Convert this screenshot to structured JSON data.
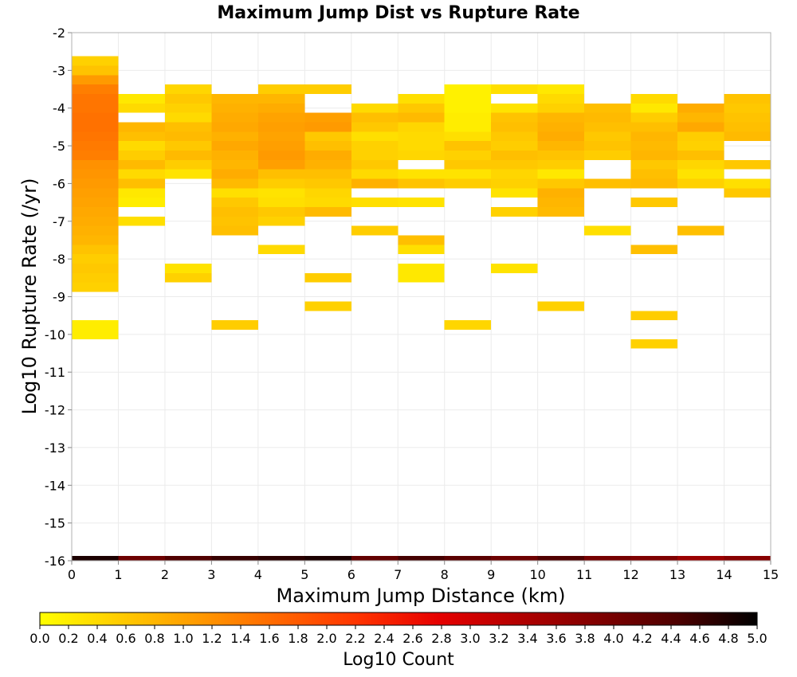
{
  "chart_data": {
    "type": "heatmap",
    "title": "Maximum Jump Dist vs Rupture Rate",
    "xlabel": "Maximum Jump Distance (km)",
    "ylabel": "Log10 Rupture Rate (/yr)",
    "xlim": [
      0,
      15
    ],
    "ylim": [
      -16,
      -2
    ],
    "x_ticks": [
      0,
      1,
      2,
      3,
      4,
      5,
      6,
      7,
      8,
      9,
      10,
      11,
      12,
      13,
      14,
      15
    ],
    "y_ticks": [
      -2,
      -3,
      -4,
      -5,
      -6,
      -7,
      -8,
      -9,
      -10,
      -11,
      -12,
      -13,
      -14,
      -15,
      -16
    ],
    "x_bin_width": 1,
    "y_bin_height": 0.25,
    "colorscale": {
      "title": "Log10 Count",
      "min": 0.0,
      "max": 5.0,
      "ticks": [
        "0.0",
        "0.2",
        "0.4",
        "0.6",
        "0.8",
        "1.0",
        "1.2",
        "1.4",
        "1.6",
        "1.8",
        "2.0",
        "2.2",
        "2.4",
        "2.6",
        "2.8",
        "3.0",
        "3.2",
        "3.4",
        "3.6",
        "3.8",
        "4.0",
        "4.2",
        "4.4",
        "4.6",
        "4.8",
        "5.0"
      ],
      "stops": [
        "#ffff00",
        "#ffcc00",
        "#ff9900",
        "#ff6600",
        "#ff3300",
        "#e60000",
        "#b30000",
        "#800000",
        "#4d0000",
        "#000000"
      ]
    },
    "cells": [
      {
        "x": 0,
        "y": -2.75,
        "v": 0.5
      },
      {
        "x": 0,
        "y": -3.0,
        "v": 0.65
      },
      {
        "x": 0,
        "y": -3.25,
        "v": 1.1
      },
      {
        "x": 0,
        "y": -3.5,
        "v": 1.4
      },
      {
        "x": 0,
        "y": -3.75,
        "v": 1.5
      },
      {
        "x": 0,
        "y": -4.0,
        "v": 1.5
      },
      {
        "x": 0,
        "y": -4.25,
        "v": 1.55
      },
      {
        "x": 0,
        "y": -4.5,
        "v": 1.55
      },
      {
        "x": 0,
        "y": -4.75,
        "v": 1.5
      },
      {
        "x": 0,
        "y": -5.0,
        "v": 1.45
      },
      {
        "x": 0,
        "y": -5.25,
        "v": 1.4
      },
      {
        "x": 0,
        "y": -5.5,
        "v": 1.2
      },
      {
        "x": 0,
        "y": -5.75,
        "v": 1.15
      },
      {
        "x": 0,
        "y": -6.0,
        "v": 1.1
      },
      {
        "x": 0,
        "y": -6.25,
        "v": 1.05
      },
      {
        "x": 0,
        "y": -6.5,
        "v": 1.0
      },
      {
        "x": 0,
        "y": -6.75,
        "v": 0.95
      },
      {
        "x": 0,
        "y": -7.0,
        "v": 0.9
      },
      {
        "x": 0,
        "y": -7.25,
        "v": 0.85
      },
      {
        "x": 0,
        "y": -7.5,
        "v": 0.8
      },
      {
        "x": 0,
        "y": -7.75,
        "v": 0.65
      },
      {
        "x": 0,
        "y": -8.0,
        "v": 0.55
      },
      {
        "x": 0,
        "y": -8.25,
        "v": 0.6
      },
      {
        "x": 0,
        "y": -8.5,
        "v": 0.55
      },
      {
        "x": 0,
        "y": -8.75,
        "v": 0.5
      },
      {
        "x": 0,
        "y": -9.75,
        "v": 0.2
      },
      {
        "x": 0,
        "y": -10.0,
        "v": 0.2
      },
      {
        "x": 1,
        "y": -3.75,
        "v": 0.25
      },
      {
        "x": 1,
        "y": -4.0,
        "v": 0.4
      },
      {
        "x": 1,
        "y": -4.5,
        "v": 0.8
      },
      {
        "x": 1,
        "y": -4.75,
        "v": 0.7
      },
      {
        "x": 1,
        "y": -5.0,
        "v": 0.4
      },
      {
        "x": 1,
        "y": -5.25,
        "v": 0.55
      },
      {
        "x": 1,
        "y": -5.5,
        "v": 0.75
      },
      {
        "x": 1,
        "y": -5.75,
        "v": 0.4
      },
      {
        "x": 1,
        "y": -6.0,
        "v": 0.7
      },
      {
        "x": 1,
        "y": -6.25,
        "v": 0.25
      },
      {
        "x": 1,
        "y": -6.5,
        "v": 0.2
      },
      {
        "x": 1,
        "y": -7.0,
        "v": 0.35
      },
      {
        "x": 2,
        "y": -3.5,
        "v": 0.45
      },
      {
        "x": 2,
        "y": -3.75,
        "v": 0.6
      },
      {
        "x": 2,
        "y": -4.0,
        "v": 0.5
      },
      {
        "x": 2,
        "y": -4.25,
        "v": 0.4
      },
      {
        "x": 2,
        "y": -4.5,
        "v": 0.7
      },
      {
        "x": 2,
        "y": -4.75,
        "v": 0.75
      },
      {
        "x": 2,
        "y": -5.0,
        "v": 0.6
      },
      {
        "x": 2,
        "y": -5.25,
        "v": 0.75
      },
      {
        "x": 2,
        "y": -5.5,
        "v": 0.55
      },
      {
        "x": 2,
        "y": -5.75,
        "v": 0.3
      },
      {
        "x": 2,
        "y": -8.25,
        "v": 0.3
      },
      {
        "x": 2,
        "y": -8.5,
        "v": 0.5
      },
      {
        "x": 3,
        "y": -3.75,
        "v": 0.8
      },
      {
        "x": 3,
        "y": -4.0,
        "v": 0.85
      },
      {
        "x": 3,
        "y": -4.25,
        "v": 0.9
      },
      {
        "x": 3,
        "y": -4.5,
        "v": 0.95
      },
      {
        "x": 3,
        "y": -4.75,
        "v": 0.85
      },
      {
        "x": 3,
        "y": -5.0,
        "v": 0.95
      },
      {
        "x": 3,
        "y": -5.25,
        "v": 0.85
      },
      {
        "x": 3,
        "y": -5.5,
        "v": 0.8
      },
      {
        "x": 3,
        "y": -5.75,
        "v": 0.9
      },
      {
        "x": 3,
        "y": -6.0,
        "v": 0.75
      },
      {
        "x": 3,
        "y": -6.25,
        "v": 0.35
      },
      {
        "x": 3,
        "y": -6.5,
        "v": 0.6
      },
      {
        "x": 3,
        "y": -6.75,
        "v": 0.7
      },
      {
        "x": 3,
        "y": -7.0,
        "v": 0.65
      },
      {
        "x": 3,
        "y": -7.25,
        "v": 0.7
      },
      {
        "x": 3,
        "y": -9.75,
        "v": 0.55
      },
      {
        "x": 4,
        "y": -3.5,
        "v": 0.55
      },
      {
        "x": 4,
        "y": -3.75,
        "v": 0.8
      },
      {
        "x": 4,
        "y": -4.0,
        "v": 0.9
      },
      {
        "x": 4,
        "y": -4.25,
        "v": 1.0
      },
      {
        "x": 4,
        "y": -4.5,
        "v": 1.05
      },
      {
        "x": 4,
        "y": -4.75,
        "v": 1.0
      },
      {
        "x": 4,
        "y": -5.0,
        "v": 1.05
      },
      {
        "x": 4,
        "y": -5.25,
        "v": 1.1
      },
      {
        "x": 4,
        "y": -5.5,
        "v": 1.05
      },
      {
        "x": 4,
        "y": -5.75,
        "v": 0.7
      },
      {
        "x": 4,
        "y": -6.0,
        "v": 0.55
      },
      {
        "x": 4,
        "y": -6.25,
        "v": 0.3
      },
      {
        "x": 4,
        "y": -6.5,
        "v": 0.35
      },
      {
        "x": 4,
        "y": -6.75,
        "v": 0.6
      },
      {
        "x": 4,
        "y": -7.0,
        "v": 0.5
      },
      {
        "x": 4,
        "y": -7.75,
        "v": 0.4
      },
      {
        "x": 5,
        "y": -3.5,
        "v": 0.55
      },
      {
        "x": 5,
        "y": -4.25,
        "v": 1.05
      },
      {
        "x": 5,
        "y": -4.5,
        "v": 1.1
      },
      {
        "x": 5,
        "y": -4.75,
        "v": 0.6
      },
      {
        "x": 5,
        "y": -5.0,
        "v": 0.7
      },
      {
        "x": 5,
        "y": -5.25,
        "v": 0.9
      },
      {
        "x": 5,
        "y": -5.5,
        "v": 0.85
      },
      {
        "x": 5,
        "y": -5.75,
        "v": 0.7
      },
      {
        "x": 5,
        "y": -6.0,
        "v": 0.6
      },
      {
        "x": 5,
        "y": -6.25,
        "v": 0.45
      },
      {
        "x": 5,
        "y": -6.5,
        "v": 0.4
      },
      {
        "x": 5,
        "y": -6.75,
        "v": 0.75
      },
      {
        "x": 5,
        "y": -8.5,
        "v": 0.55
      },
      {
        "x": 5,
        "y": -9.25,
        "v": 0.5
      },
      {
        "x": 6,
        "y": -4.0,
        "v": 0.4
      },
      {
        "x": 6,
        "y": -4.25,
        "v": 0.7
      },
      {
        "x": 6,
        "y": -4.5,
        "v": 0.6
      },
      {
        "x": 6,
        "y": -4.75,
        "v": 0.35
      },
      {
        "x": 6,
        "y": -5.0,
        "v": 0.5
      },
      {
        "x": 6,
        "y": -5.25,
        "v": 0.5
      },
      {
        "x": 6,
        "y": -5.5,
        "v": 0.6
      },
      {
        "x": 6,
        "y": -5.75,
        "v": 0.4
      },
      {
        "x": 6,
        "y": -6.0,
        "v": 0.85
      },
      {
        "x": 6,
        "y": -6.5,
        "v": 0.35
      },
      {
        "x": 6,
        "y": -7.25,
        "v": 0.55
      },
      {
        "x": 7,
        "y": -3.75,
        "v": 0.35
      },
      {
        "x": 7,
        "y": -4.0,
        "v": 0.6
      },
      {
        "x": 7,
        "y": -4.25,
        "v": 0.75
      },
      {
        "x": 7,
        "y": -4.5,
        "v": 0.45
      },
      {
        "x": 7,
        "y": -4.75,
        "v": 0.4
      },
      {
        "x": 7,
        "y": -5.0,
        "v": 0.4
      },
      {
        "x": 7,
        "y": -5.25,
        "v": 0.45
      },
      {
        "x": 7,
        "y": -5.75,
        "v": 0.3
      },
      {
        "x": 7,
        "y": -6.0,
        "v": 0.65
      },
      {
        "x": 7,
        "y": -6.5,
        "v": 0.3
      },
      {
        "x": 7,
        "y": -7.5,
        "v": 0.7
      },
      {
        "x": 7,
        "y": -7.75,
        "v": 0.35
      },
      {
        "x": 7,
        "y": -8.25,
        "v": 0.25
      },
      {
        "x": 7,
        "y": -8.5,
        "v": 0.25
      },
      {
        "x": 8,
        "y": -3.5,
        "v": 0.15
      },
      {
        "x": 8,
        "y": -3.75,
        "v": 0.15
      },
      {
        "x": 8,
        "y": -4.0,
        "v": 0.15
      },
      {
        "x": 8,
        "y": -4.25,
        "v": 0.2
      },
      {
        "x": 8,
        "y": -4.5,
        "v": 0.2
      },
      {
        "x": 8,
        "y": -4.75,
        "v": 0.35
      },
      {
        "x": 8,
        "y": -5.0,
        "v": 0.65
      },
      {
        "x": 8,
        "y": -5.25,
        "v": 0.5
      },
      {
        "x": 8,
        "y": -5.5,
        "v": 0.6
      },
      {
        "x": 8,
        "y": -5.75,
        "v": 0.3
      },
      {
        "x": 8,
        "y": -6.0,
        "v": 0.55
      },
      {
        "x": 8,
        "y": -9.75,
        "v": 0.45
      },
      {
        "x": 9,
        "y": -3.5,
        "v": 0.35
      },
      {
        "x": 9,
        "y": -4.0,
        "v": 0.3
      },
      {
        "x": 9,
        "y": -4.25,
        "v": 0.65
      },
      {
        "x": 9,
        "y": -4.5,
        "v": 0.7
      },
      {
        "x": 9,
        "y": -4.75,
        "v": 0.6
      },
      {
        "x": 9,
        "y": -5.0,
        "v": 0.55
      },
      {
        "x": 9,
        "y": -5.25,
        "v": 0.7
      },
      {
        "x": 9,
        "y": -5.5,
        "v": 0.6
      },
      {
        "x": 9,
        "y": -5.75,
        "v": 0.45
      },
      {
        "x": 9,
        "y": -6.0,
        "v": 0.5
      },
      {
        "x": 9,
        "y": -6.25,
        "v": 0.3
      },
      {
        "x": 9,
        "y": -6.75,
        "v": 0.5
      },
      {
        "x": 9,
        "y": -8.25,
        "v": 0.3
      },
      {
        "x": 10,
        "y": -3.5,
        "v": 0.25
      },
      {
        "x": 10,
        "y": -3.75,
        "v": 0.4
      },
      {
        "x": 10,
        "y": -4.0,
        "v": 0.5
      },
      {
        "x": 10,
        "y": -4.25,
        "v": 0.8
      },
      {
        "x": 10,
        "y": -4.5,
        "v": 0.85
      },
      {
        "x": 10,
        "y": -4.75,
        "v": 0.9
      },
      {
        "x": 10,
        "y": -5.0,
        "v": 0.8
      },
      {
        "x": 10,
        "y": -5.25,
        "v": 0.65
      },
      {
        "x": 10,
        "y": -5.5,
        "v": 0.55
      },
      {
        "x": 10,
        "y": -5.75,
        "v": 0.25
      },
      {
        "x": 10,
        "y": -6.0,
        "v": 0.6
      },
      {
        "x": 10,
        "y": -6.25,
        "v": 0.85
      },
      {
        "x": 10,
        "y": -6.5,
        "v": 0.8
      },
      {
        "x": 10,
        "y": -6.75,
        "v": 0.75
      },
      {
        "x": 10,
        "y": -9.25,
        "v": 0.5
      },
      {
        "x": 11,
        "y": -4.0,
        "v": 0.7
      },
      {
        "x": 11,
        "y": -4.25,
        "v": 0.75
      },
      {
        "x": 11,
        "y": -4.5,
        "v": 0.7
      },
      {
        "x": 11,
        "y": -4.75,
        "v": 0.6
      },
      {
        "x": 11,
        "y": -5.0,
        "v": 0.65
      },
      {
        "x": 11,
        "y": -5.25,
        "v": 0.55
      },
      {
        "x": 11,
        "y": -6.0,
        "v": 0.7
      },
      {
        "x": 11,
        "y": -7.25,
        "v": 0.35
      },
      {
        "x": 12,
        "y": -3.75,
        "v": 0.4
      },
      {
        "x": 12,
        "y": -4.0,
        "v": 0.25
      },
      {
        "x": 12,
        "y": -4.25,
        "v": 0.55
      },
      {
        "x": 12,
        "y": -4.5,
        "v": 0.7
      },
      {
        "x": 12,
        "y": -4.75,
        "v": 0.8
      },
      {
        "x": 12,
        "y": -5.0,
        "v": 0.75
      },
      {
        "x": 12,
        "y": -5.25,
        "v": 0.8
      },
      {
        "x": 12,
        "y": -5.5,
        "v": 0.6
      },
      {
        "x": 12,
        "y": -5.75,
        "v": 0.7
      },
      {
        "x": 12,
        "y": -6.0,
        "v": 0.75
      },
      {
        "x": 12,
        "y": -6.5,
        "v": 0.6
      },
      {
        "x": 12,
        "y": -7.75,
        "v": 0.7
      },
      {
        "x": 12,
        "y": -9.5,
        "v": 0.55
      },
      {
        "x": 12,
        "y": -10.25,
        "v": 0.5
      },
      {
        "x": 13,
        "y": -4.0,
        "v": 0.9
      },
      {
        "x": 13,
        "y": -4.25,
        "v": 0.8
      },
      {
        "x": 13,
        "y": -4.5,
        "v": 0.95
      },
      {
        "x": 13,
        "y": -4.75,
        "v": 0.55
      },
      {
        "x": 13,
        "y": -5.0,
        "v": 0.5
      },
      {
        "x": 13,
        "y": -5.25,
        "v": 0.7
      },
      {
        "x": 13,
        "y": -5.5,
        "v": 0.45
      },
      {
        "x": 13,
        "y": -5.75,
        "v": 0.3
      },
      {
        "x": 13,
        "y": -6.0,
        "v": 0.5
      },
      {
        "x": 13,
        "y": -7.25,
        "v": 0.7
      },
      {
        "x": 14,
        "y": -3.75,
        "v": 0.65
      },
      {
        "x": 14,
        "y": -4.0,
        "v": 0.6
      },
      {
        "x": 14,
        "y": -4.25,
        "v": 0.65
      },
      {
        "x": 14,
        "y": -4.5,
        "v": 0.7
      },
      {
        "x": 14,
        "y": -4.75,
        "v": 0.75
      },
      {
        "x": 14,
        "y": -5.5,
        "v": 0.6
      },
      {
        "x": 14,
        "y": -6.0,
        "v": 0.35
      },
      {
        "x": 14,
        "y": -6.25,
        "v": 0.6
      },
      {
        "x": 0,
        "y": -16.0,
        "v": 4.8
      },
      {
        "x": 1,
        "y": -16.0,
        "v": 4.1
      },
      {
        "x": 2,
        "y": -16.0,
        "v": 4.4
      },
      {
        "x": 3,
        "y": -16.0,
        "v": 4.6
      },
      {
        "x": 4,
        "y": -16.0,
        "v": 4.7
      },
      {
        "x": 5,
        "y": -16.0,
        "v": 4.8
      },
      {
        "x": 6,
        "y": -16.0,
        "v": 4.2
      },
      {
        "x": 7,
        "y": -16.0,
        "v": 4.5
      },
      {
        "x": 8,
        "y": -16.0,
        "v": 4.3
      },
      {
        "x": 9,
        "y": -16.0,
        "v": 4.1
      },
      {
        "x": 10,
        "y": -16.0,
        "v": 4.4
      },
      {
        "x": 11,
        "y": -16.0,
        "v": 4.0
      },
      {
        "x": 12,
        "y": -16.0,
        "v": 3.9
      },
      {
        "x": 13,
        "y": -16.0,
        "v": 3.6
      },
      {
        "x": 14,
        "y": -16.0,
        "v": 3.8
      }
    ]
  }
}
